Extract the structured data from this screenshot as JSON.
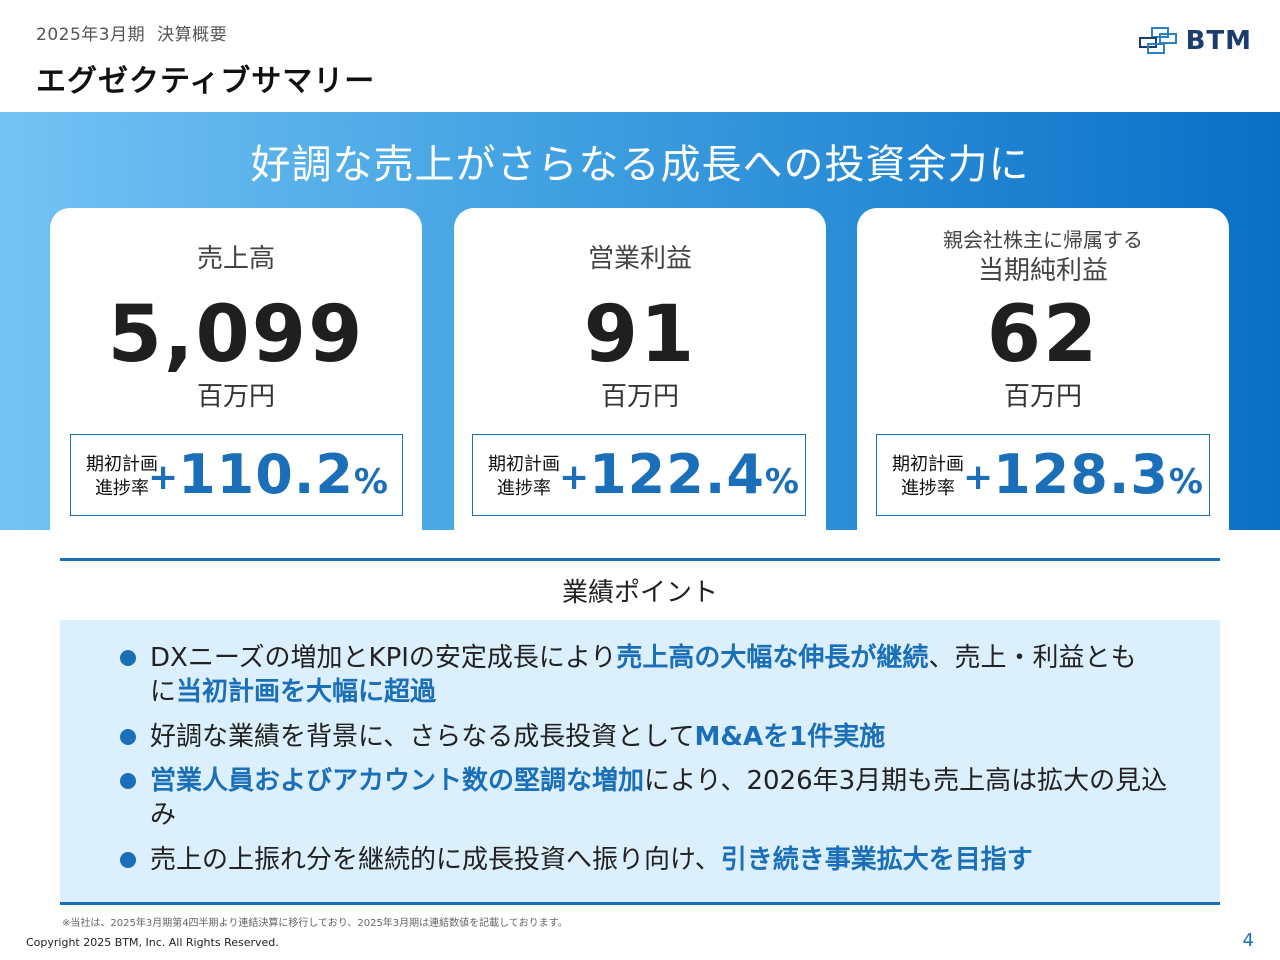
{
  "header": {
    "period": "2025年3月期",
    "category": "決算概要",
    "title": "エグゼクティブサマリー",
    "logo_text": "BTM",
    "logo_icon": "btm-logo-mark-icon"
  },
  "banner": {
    "headline": "好調な売上がさらなる成長への投資余力に"
  },
  "cards": [
    {
      "label_small": "",
      "label": "売上高",
      "value": "5,099",
      "unit": "百万円",
      "progress_label_1": "期初計画",
      "progress_label_2": "進捗率",
      "progress_plus": "+",
      "progress_value": "110.2",
      "progress_pct": "%"
    },
    {
      "label_small": "",
      "label": "営業利益",
      "value": "91",
      "unit": "百万円",
      "progress_label_1": "期初計画",
      "progress_label_2": "進捗率",
      "progress_plus": "+",
      "progress_value": "122.4",
      "progress_pct": "%"
    },
    {
      "label_small": "親会社株主に帰属する",
      "label": "当期純利益",
      "value": "62",
      "unit": "百万円",
      "progress_label_1": "期初計画",
      "progress_label_2": "進捗率",
      "progress_plus": "+",
      "progress_value": "128.3",
      "progress_pct": "%"
    }
  ],
  "points": {
    "title": "業績ポイント",
    "items": [
      {
        "segments": [
          {
            "text": "DXニーズの増加とKPIの安定成長により",
            "hl": false
          },
          {
            "text": "売上高の大幅な伸長が継続",
            "hl": true
          },
          {
            "text": "、売上・利益ともに",
            "hl": false
          },
          {
            "text": "当初計画を大幅に超過",
            "hl": true
          }
        ]
      },
      {
        "segments": [
          {
            "text": "好調な業績を背景に、さらなる成長投資として",
            "hl": false
          },
          {
            "text": "M&Aを1件実施",
            "hl": true
          }
        ]
      },
      {
        "segments": [
          {
            "text": "営業人員およびアカウント数の堅調な増加",
            "hl": true
          },
          {
            "text": "により、2026年3月期も売上高は拡大の見込み",
            "hl": false
          }
        ]
      },
      {
        "segments": [
          {
            "text": "売上の上振れ分を継続的に成長投資へ振り向け、",
            "hl": false
          },
          {
            "text": "引き続き事業拡大を目指す",
            "hl": true
          }
        ]
      }
    ]
  },
  "footer": {
    "footnote": "※当社は、2025年3月期第4四半期より連結決算に移行しており、2025年3月期は連結数値を記載しております。",
    "copyright": "Copyright 2025 BTM, Inc. All Rights Reserved.",
    "page": "4"
  },
  "colors": {
    "accent": "#1a6fb8",
    "banner_light": "#74c3f4",
    "banner_dark": "#0a6fc6",
    "points_bg": "#dceffc"
  }
}
